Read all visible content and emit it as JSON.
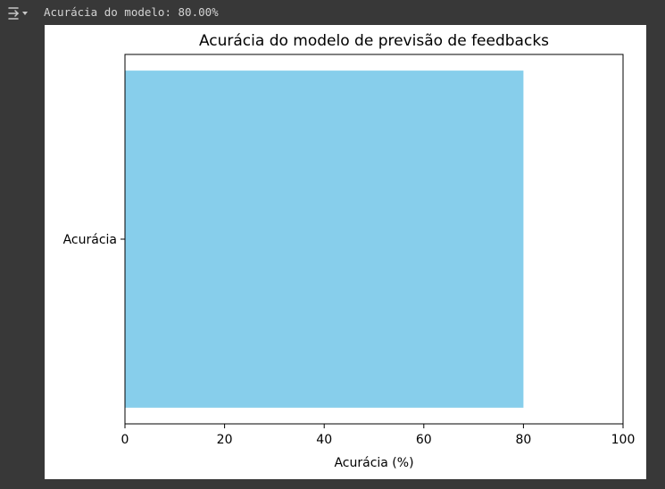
{
  "output": {
    "stdout_line": "Acurácia do modelo: 80.00%",
    "output_icon": "output-toggle-icon"
  },
  "chart_data": {
    "type": "bar",
    "orientation": "horizontal",
    "title": "Acurácia do modelo de previsão de feedbacks",
    "xlabel": "Acurácia (%)",
    "ylabel": "",
    "categories": [
      "Acurácia"
    ],
    "values": [
      80
    ],
    "xlim": [
      0,
      100
    ],
    "xticks": [
      "0",
      "20",
      "40",
      "60",
      "80",
      "100"
    ],
    "bar_color": "#87CEEB",
    "grid": false
  }
}
